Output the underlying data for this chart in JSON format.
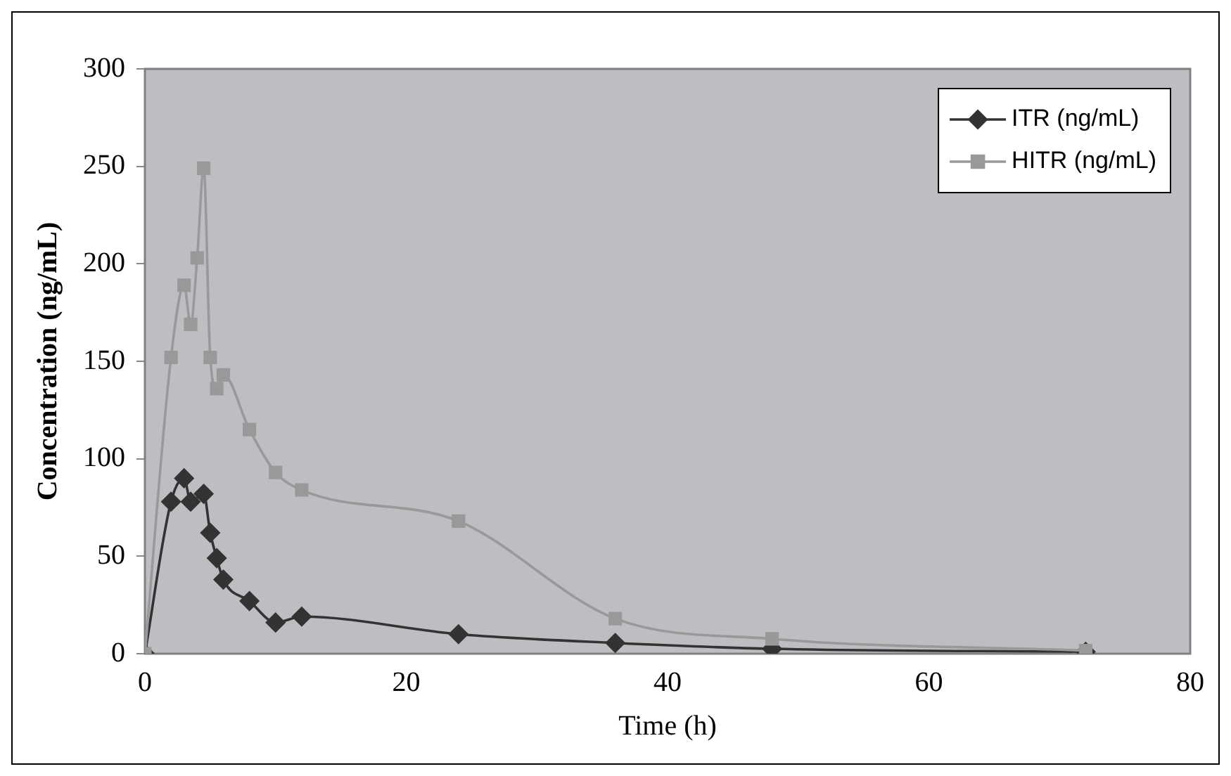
{
  "chart_data": {
    "type": "line",
    "xlabel": "Time (h)",
    "ylabel": "Concentration (ng/mL)",
    "xlim": [
      0,
      80
    ],
    "xticks": [
      0,
      20,
      40,
      60,
      80
    ],
    "ylim": [
      0,
      300
    ],
    "yticks": [
      0,
      50,
      100,
      150,
      200,
      250,
      300
    ],
    "grid": false,
    "legend": "top right",
    "series": [
      {
        "name": "ITR (ng/mL)",
        "color": "#333333",
        "marker": "diamond",
        "x": [
          0,
          2,
          3,
          3.5,
          4.5,
          5,
          5.5,
          6,
          8,
          10,
          12,
          24,
          36,
          48,
          72
        ],
        "values": [
          0,
          78,
          90,
          78,
          82,
          62,
          49,
          38,
          27,
          16,
          19,
          10,
          5.5,
          2.5,
          1
        ]
      },
      {
        "name": "HITR (ng/mL)",
        "color": "#999999",
        "marker": "square",
        "x": [
          0,
          2,
          3,
          3.5,
          4,
          4.5,
          5,
          5.5,
          6,
          8,
          10,
          12,
          24,
          36,
          48,
          72
        ],
        "values": [
          0,
          152,
          189,
          169,
          203,
          249,
          152,
          136,
          143,
          115,
          93,
          84,
          68,
          18,
          7.6,
          1.6
        ]
      }
    ]
  }
}
